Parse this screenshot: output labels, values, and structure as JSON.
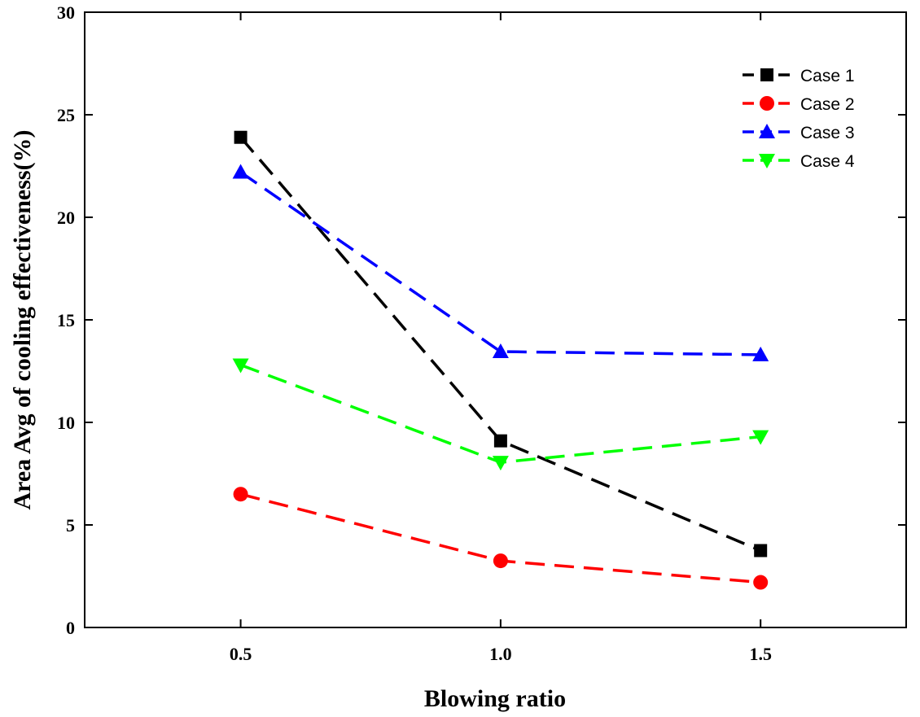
{
  "chart_data": {
    "type": "line",
    "title": "",
    "xlabel": "Blowing ratio",
    "ylabel": "Area Avg of cooling effectiveness(%)",
    "x": [
      0.5,
      1.0,
      1.5
    ],
    "x_tick_labels": [
      "0.5",
      "1.0",
      "1.5"
    ],
    "xlim": [
      0.2,
      1.78
    ],
    "ylim": [
      0,
      30
    ],
    "y_ticks": [
      0,
      5,
      10,
      15,
      20,
      25,
      30
    ],
    "y_tick_labels": [
      "0",
      "5",
      "10",
      "15",
      "20",
      "25",
      "30"
    ],
    "grid": false,
    "legend_position": "top-right",
    "line_style": "dashed",
    "series": [
      {
        "name": "Case 1",
        "values": [
          23.9,
          9.1,
          3.75
        ],
        "color": "#000000",
        "marker": "square"
      },
      {
        "name": "Case 2",
        "values": [
          6.5,
          3.25,
          2.2
        ],
        "color": "#ff0000",
        "marker": "circle"
      },
      {
        "name": "Case 3",
        "values": [
          22.2,
          13.45,
          13.3
        ],
        "color": "#0000ff",
        "marker": "triangle-up"
      },
      {
        "name": "Case 4",
        "values": [
          12.8,
          8.05,
          9.3
        ],
        "color": "#00ff00",
        "marker": "triangle-down"
      }
    ]
  }
}
